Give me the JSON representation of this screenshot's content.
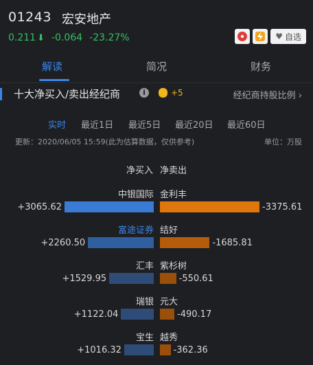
{
  "header": {
    "code": "01243",
    "name": "宏安地产",
    "price": "0.211",
    "change": "-0.064",
    "change_pct": "-23.27%",
    "fav_label": "自选",
    "colors": {
      "down": "#37c060",
      "accent": "#3a86e8",
      "buy": "#3a7bd5",
      "sell": "#e0770c"
    }
  },
  "tabs": [
    "解读",
    "简况",
    "财务"
  ],
  "section": {
    "title": "十大净买入/卖出经纪商",
    "info_icon": "i",
    "coin_count": "+5",
    "ratio_link": "经纪商持股比例 ›"
  },
  "periods": [
    "实时",
    "最近1日",
    "最近5日",
    "最近20日",
    "最近60日"
  ],
  "update": "更新：2020/06/05 15:59(此为估算数据，仅供参考)",
  "unit": "单位：万股",
  "columns": {
    "buy": "净买入",
    "sell": "净卖出"
  },
  "chart_data": {
    "type": "bar",
    "rows": [
      {
        "buy_name": "中银国际",
        "buy_value": "+3065.62",
        "buy": 3065.62,
        "sell_name": "金利丰",
        "sell_value": "-3375.61",
        "sell": 3375.61
      },
      {
        "buy_name": "富途证券",
        "buy_value": "+2260.50",
        "buy": 2260.5,
        "sell_name": "结好",
        "sell_value": "-1685.81",
        "sell": 1685.81
      },
      {
        "buy_name": "汇丰",
        "buy_value": "+1529.95",
        "buy": 1529.95,
        "sell_name": "紫杉树",
        "sell_value": "-550.61",
        "sell": 550.61
      },
      {
        "buy_name": "瑞银",
        "buy_value": "+1122.04",
        "buy": 1122.04,
        "sell_name": "元大",
        "sell_value": "-490.17",
        "sell": 490.17
      },
      {
        "buy_name": "宝生",
        "buy_value": "+1016.32",
        "buy": 1016.32,
        "sell_name": "越秀",
        "sell_value": "-362.36",
        "sell": 362.36
      }
    ]
  }
}
